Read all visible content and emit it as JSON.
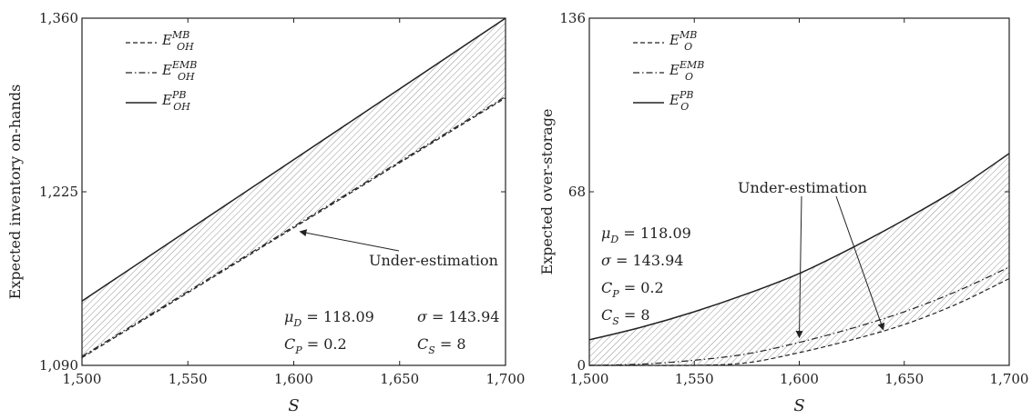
{
  "chart_data": [
    {
      "type": "line",
      "xlabel": "S",
      "ylabel": "Expected inventory on-hands",
      "xlim": [
        1500,
        1700
      ],
      "ylim": [
        1090,
        1360
      ],
      "x_ticks": [
        "1,500",
        "1,550",
        "1,600",
        "1,650",
        "1,700"
      ],
      "y_ticks": [
        "1,090",
        "1,225",
        "1,360"
      ],
      "y_tick_values": [
        1090,
        1225,
        1360
      ],
      "x_tick_values": [
        1500,
        1550,
        1600,
        1650,
        1700
      ],
      "grid": false,
      "legend_position": "top-left",
      "shaded_region": "between E_OH^PB and E_OH^MB (hatched)",
      "series": [
        {
          "name_main": "E",
          "name_sup": "MB",
          "name_sub": "OH",
          "style": "dashed",
          "x": [
            1500,
            1700
          ],
          "y": [
            1096,
            1298
          ]
        },
        {
          "name_main": "E",
          "name_sup": "EMB",
          "name_sub": "OH",
          "style": "dashdot",
          "x": [
            1500,
            1700
          ],
          "y": [
            1097,
            1299
          ]
        },
        {
          "name_main": "E",
          "name_sup": "PB",
          "name_sub": "OH",
          "style": "solid",
          "x": [
            1500,
            1700
          ],
          "y": [
            1140,
            1360
          ]
        }
      ],
      "annotation": {
        "text": "Under-estimation",
        "arrow_to": [
          1603,
          1194
        ]
      },
      "params": [
        [
          "μ",
          "D",
          " = 118.09"
        ],
        [
          "σ",
          "",
          " = 143.94"
        ],
        [
          "C",
          "P",
          " = 0.2"
        ],
        [
          "C",
          "S",
          " = 8"
        ]
      ]
    },
    {
      "type": "line",
      "xlabel": "S",
      "ylabel": "Expected over-storage",
      "xlim": [
        1500,
        1700
      ],
      "ylim": [
        0,
        136
      ],
      "x_ticks": [
        "1,500",
        "1,550",
        "1,600",
        "1,650",
        "1,700"
      ],
      "y_ticks": [
        "0",
        "68",
        "136"
      ],
      "y_tick_values": [
        0,
        68,
        136
      ],
      "x_tick_values": [
        1500,
        1550,
        1600,
        1650,
        1700
      ],
      "grid": false,
      "legend_position": "top-left",
      "shaded_region": "between E_O^PB and E_O^MB (hatched)",
      "series": [
        {
          "name_main": "E",
          "name_sup": "MB",
          "name_sub": "O",
          "style": "dashed",
          "x": [
            1500,
            1525,
            1550,
            1575,
            1600,
            1625,
            1650,
            1675,
            1700
          ],
          "y": [
            0,
            0,
            0,
            1,
            5,
            10,
            16,
            24,
            34
          ]
        },
        {
          "name_main": "E",
          "name_sup": "EMB",
          "name_sub": "O",
          "style": "dashdot",
          "x": [
            1500,
            1525,
            1550,
            1575,
            1600,
            1625,
            1650,
            1675,
            1700
          ],
          "y": [
            0,
            0.5,
            2,
            4.5,
            9,
            14.5,
            21,
            29,
            38.5
          ]
        },
        {
          "name_main": "E",
          "name_sup": "PB",
          "name_sub": "O",
          "style": "solid",
          "x": [
            1500,
            1525,
            1550,
            1575,
            1600,
            1625,
            1650,
            1675,
            1700
          ],
          "y": [
            10,
            15,
            21,
            28,
            36,
            46,
            57,
            69,
            83
          ]
        }
      ],
      "annotation": {
        "text": "Under-estimation",
        "arrow_to": [
          [
            1600,
            11
          ],
          [
            1640,
            14
          ]
        ]
      },
      "params": [
        [
          "μ",
          "D",
          " = 118.09"
        ],
        [
          "σ",
          "",
          " = 143.94"
        ],
        [
          "C",
          "P",
          " = 0.2"
        ],
        [
          "C",
          "S",
          " = 8"
        ]
      ]
    }
  ]
}
